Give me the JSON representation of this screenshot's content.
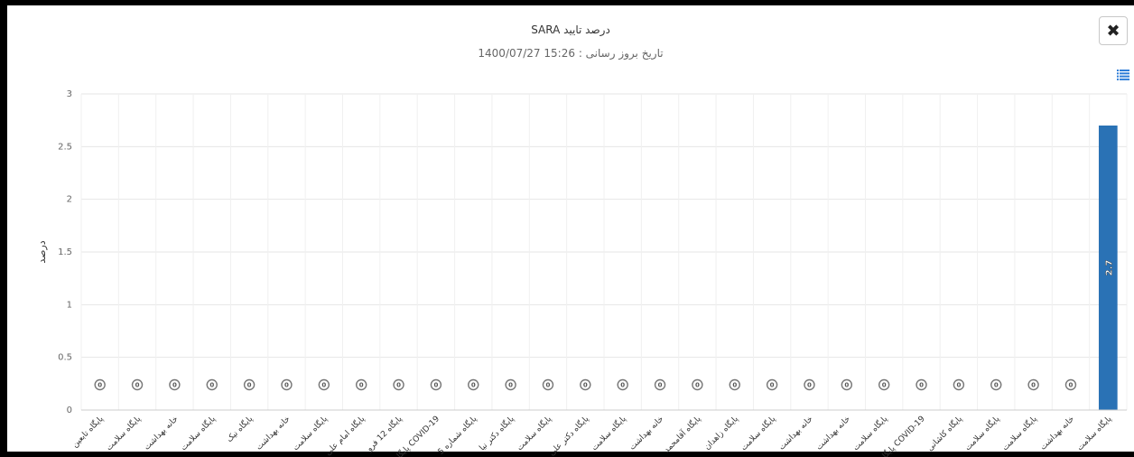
{
  "window": {
    "close_icon": "close-icon",
    "close_glyph": "✖"
  },
  "menu": {
    "icon": "menu-icon",
    "color": "#2f7ed8"
  },
  "chart_data": {
    "type": "bar",
    "title": "درصد تایید SARA",
    "subtitle": "تاریخ بروز رسانی : 15:26 1400/07/27",
    "xlabel": "",
    "ylabel": "درصد",
    "ylim": [
      0,
      3
    ],
    "yticks": [
      "0",
      "0.5",
      "1",
      "1.5",
      "2",
      "2.5",
      "3"
    ],
    "grid": true,
    "legend": "none",
    "bar_color": "#2a72b5",
    "categories": [
      "پایگاه تابعین",
      "پایگاه سلامت",
      "خانه بهداشت",
      "پایگاه سلامت",
      "پایگاه نیک",
      "خانه بهداشت",
      "پایگاه سلامت",
      "پایگاه امام علی",
      "پایگاه 12 فرو",
      "پایگاه COVID-19",
      "پایگاه شماره 5",
      "پایگاه دکتر نیا",
      "پایگاه سلامت",
      "پایگاه دکتر علی",
      "پایگاه سلامت",
      "خانه بهداشت",
      "پایگاه آقامحمد",
      "پایگاه زاهدان",
      "پایگاه سلامت",
      "خانه بهداشت",
      "خانه بهداشت",
      "پایگاه سلامت",
      "پایگاه COVID-19",
      "پایگاه کاشانی",
      "پایگاه سلامت",
      "پایگاه سلامت",
      "خانه بهداشت",
      "پایگاه سلامت"
    ],
    "values": [
      0,
      0,
      0,
      0,
      0,
      0,
      0,
      0,
      0,
      0,
      0,
      0,
      0,
      0,
      0,
      0,
      0,
      0,
      0,
      0,
      0,
      0,
      0,
      0,
      0,
      0,
      0,
      2.7
    ],
    "data_labels": [
      "0",
      "0",
      "0",
      "0",
      "0",
      "0",
      "0",
      "0",
      "0",
      "0",
      "0",
      "0",
      "0",
      "0",
      "0",
      "0",
      "0",
      "0",
      "0",
      "0",
      "0",
      "0",
      "0",
      "0",
      "0",
      "0",
      "0",
      "2.7"
    ]
  }
}
